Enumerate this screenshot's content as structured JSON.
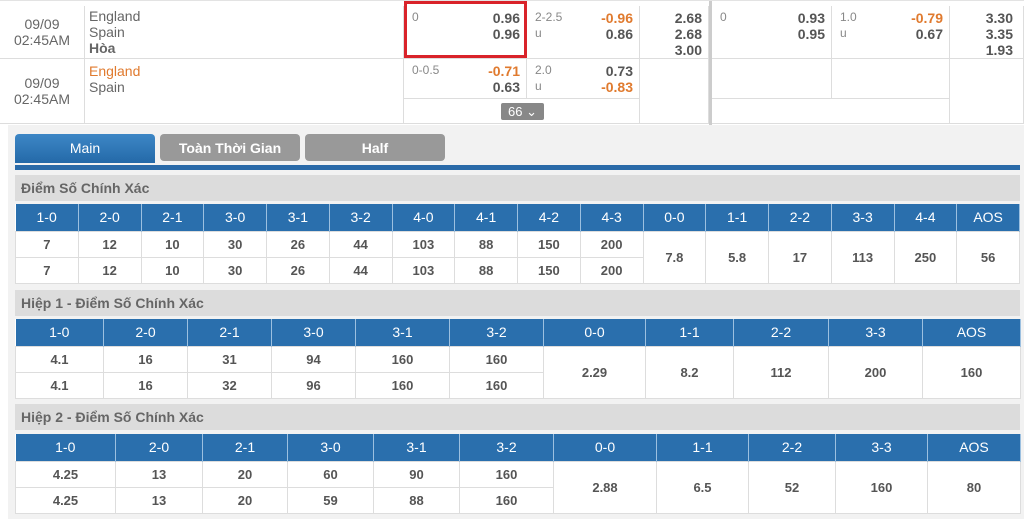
{
  "matches": [
    {
      "date": "09/09",
      "time": "02:45AM",
      "home": "England",
      "away": "Spain",
      "draw": "Hòa",
      "ft_hdp": {
        "line": "0",
        "home": "0.96",
        "away": "0.96"
      },
      "ft_ou": {
        "line": "2-2.5",
        "under_label": "u",
        "over": "-0.96",
        "under": "0.86"
      },
      "ft_1x2": [
        "2.68",
        "2.68",
        "3.00"
      ],
      "h1_hdp": {
        "line": "0",
        "home": "0.93",
        "away": "0.95"
      },
      "h1_ou": {
        "line": "1.0",
        "under_label": "u",
        "over": "-0.79",
        "under": "0.67"
      },
      "h1_1x2": [
        "3.30",
        "3.35",
        "1.93"
      ]
    },
    {
      "date": "09/09",
      "time": "02:45AM",
      "home": "England",
      "away": "Spain",
      "ft_hdp": {
        "line": "0-0.5",
        "home": "-0.71",
        "away": "0.63"
      },
      "ft_ou": {
        "line": "2.0",
        "under_label": "u",
        "over": "0.73",
        "under": "-0.83"
      },
      "more_count": "66"
    }
  ],
  "colors": {
    "accent": "#2a6fad",
    "negative": "#e07a2e",
    "highlight": "#d9232a"
  },
  "tabs": [
    "Main",
    "Toàn Thời Gian",
    "Half"
  ],
  "sections": [
    {
      "title": "Điểm Số Chính Xác",
      "headers": [
        "1-0",
        "2-0",
        "2-1",
        "3-0",
        "3-1",
        "3-2",
        "4-0",
        "4-1",
        "4-2",
        "4-3",
        "0-0",
        "1-1",
        "2-2",
        "3-3",
        "4-4",
        "AOS"
      ],
      "row1": [
        "7",
        "12",
        "10",
        "30",
        "26",
        "44",
        "103",
        "88",
        "150",
        "200"
      ],
      "row2": [
        "7",
        "12",
        "10",
        "30",
        "26",
        "44",
        "103",
        "88",
        "150",
        "200"
      ],
      "draws": [
        "7.8",
        "5.8",
        "17",
        "113",
        "250",
        "56"
      ]
    },
    {
      "title": "Hiệp 1 - Điểm Số Chính Xác",
      "headers": [
        "1-0",
        "2-0",
        "2-1",
        "3-0",
        "3-1",
        "3-2",
        "0-0",
        "1-1",
        "2-2",
        "3-3",
        "AOS"
      ],
      "row1": [
        "4.1",
        "16",
        "31",
        "94",
        "160",
        "160"
      ],
      "row2": [
        "4.1",
        "16",
        "32",
        "96",
        "160",
        "160"
      ],
      "draws": [
        "2.29",
        "8.2",
        "112",
        "200",
        "160"
      ]
    },
    {
      "title": "Hiệp 2 - Điểm Số Chính Xác",
      "headers": [
        "1-0",
        "2-0",
        "2-1",
        "3-0",
        "3-1",
        "3-2",
        "0-0",
        "1-1",
        "2-2",
        "3-3",
        "AOS"
      ],
      "row1": [
        "4.25",
        "13",
        "20",
        "60",
        "90",
        "160"
      ],
      "row2": [
        "4.25",
        "13",
        "20",
        "59",
        "88",
        "160"
      ],
      "draws": [
        "2.88",
        "6.5",
        "52",
        "160",
        "80"
      ]
    }
  ]
}
